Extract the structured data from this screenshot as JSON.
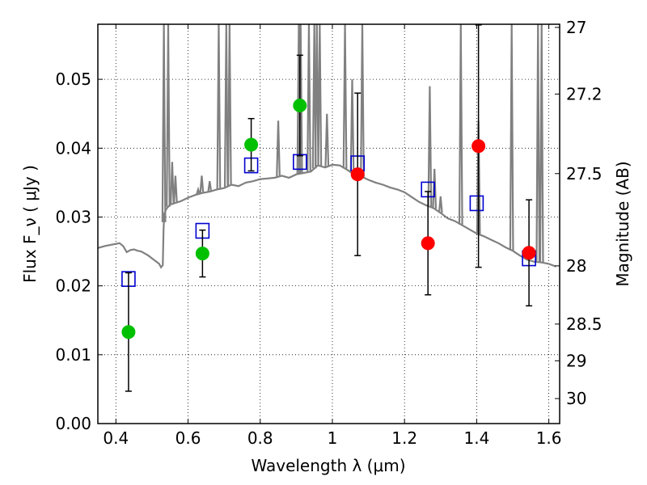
{
  "chart_data": {
    "type": "scatter",
    "xlabel": "Wavelength  λ (μm)",
    "ylabel": "Flux  F_ν  ( μJy )",
    "y2label": "Magnitude (AB)",
    "xlim": [
      0.35,
      1.63
    ],
    "ylim": [
      0.0,
      0.058
    ],
    "grid": true,
    "x_ticks": [
      0.4,
      0.6,
      0.8,
      1.0,
      1.2,
      1.4,
      1.6
    ],
    "x_tick_labels": [
      "0.4",
      "0.6",
      "0.8",
      "1",
      "1.2",
      "1.4",
      "1.6"
    ],
    "y_ticks": [
      0.0,
      0.01,
      0.02,
      0.03,
      0.04,
      0.05
    ],
    "y_tick_labels": [
      "0.00",
      "0.01",
      "0.02",
      "0.03",
      "0.04",
      "0.05"
    ],
    "y2_ticks": [
      {
        "label": "27",
        "mag": 27.0
      },
      {
        "label": "27.2",
        "mag": 27.2
      },
      {
        "label": "27.5",
        "mag": 27.5
      },
      {
        "label": "28",
        "mag": 28.0
      },
      {
        "label": "28.5",
        "mag": 28.5
      },
      {
        "label": "29",
        "mag": 29.0
      },
      {
        "label": "30",
        "mag": 30.0
      }
    ],
    "series": [
      {
        "kind": "line",
        "color": "#808080",
        "x": [
          0.35,
          0.37,
          0.39,
          0.41,
          0.42,
          0.43,
          0.44,
          0.45,
          0.46,
          0.47,
          0.48,
          0.49,
          0.5,
          0.51,
          0.52,
          0.525,
          0.53,
          0.532,
          0.534,
          0.54,
          0.55,
          0.58,
          0.6,
          0.62,
          0.64,
          0.66,
          0.68,
          0.7,
          0.72,
          0.74,
          0.76,
          0.78,
          0.8,
          0.82,
          0.84,
          0.86,
          0.88,
          0.9,
          0.92,
          0.94,
          0.96,
          0.98,
          1.0,
          1.02,
          1.04,
          1.06,
          1.08,
          1.1,
          1.12,
          1.14,
          1.16,
          1.18,
          1.2,
          1.22,
          1.24,
          1.26,
          1.28,
          1.3,
          1.32,
          1.34,
          1.36,
          1.38,
          1.4,
          1.42,
          1.44,
          1.46,
          1.48,
          1.5,
          1.52,
          1.54,
          1.56,
          1.58,
          1.6,
          1.62
        ],
        "values": [
          0.0255,
          0.0258,
          0.026,
          0.0262,
          0.0258,
          0.0249,
          0.0252,
          0.0253,
          0.0251,
          0.025,
          0.0247,
          0.0244,
          0.024,
          0.0236,
          0.0232,
          0.0227,
          0.023,
          0.028,
          0.0305,
          0.0312,
          0.0318,
          0.0323,
          0.0328,
          0.0332,
          0.0335,
          0.0337,
          0.034,
          0.0342,
          0.0347,
          0.0345,
          0.035,
          0.0352,
          0.0355,
          0.0356,
          0.0357,
          0.036,
          0.0357,
          0.0362,
          0.0364,
          0.0366,
          0.0375,
          0.0372,
          0.0376,
          0.0375,
          0.0369,
          0.0362,
          0.0359,
          0.0354,
          0.035,
          0.0347,
          0.0343,
          0.034,
          0.0336,
          0.0329,
          0.0322,
          0.0317,
          0.0313,
          0.0306,
          0.0298,
          0.0294,
          0.0288,
          0.0282,
          0.0276,
          0.0272,
          0.0267,
          0.0262,
          0.0256,
          0.0251,
          0.0244,
          0.0238,
          0.0235,
          0.0234,
          0.0232,
          0.0228
        ]
      },
      {
        "kind": "spikes",
        "color": "#808080",
        "x": [
          0.533,
          0.545,
          0.556,
          0.565,
          0.628,
          0.638,
          0.66,
          0.685,
          0.706,
          0.715,
          0.85,
          0.907,
          0.912,
          0.935,
          0.95,
          0.957,
          0.965,
          0.985,
          1.035,
          1.055,
          1.083,
          1.27,
          1.283,
          1.3,
          1.356,
          1.405,
          1.497,
          1.57,
          1.58
        ],
        "values": [
          0.058,
          0.058,
          0.038,
          0.036,
          0.034,
          0.036,
          0.0352,
          0.058,
          0.058,
          0.058,
          0.044,
          0.058,
          0.058,
          0.058,
          0.058,
          0.058,
          0.058,
          0.045,
          0.058,
          0.05,
          0.058,
          0.049,
          0.037,
          0.033,
          0.058,
          0.044,
          0.058,
          0.058,
          0.058
        ]
      },
      {
        "kind": "model-squares",
        "color": "#0000d0",
        "x": [
          0.435,
          0.64,
          0.775,
          0.91,
          1.07,
          1.265,
          1.4,
          1.545
        ],
        "values": [
          0.021,
          0.028,
          0.0375,
          0.038,
          0.0378,
          0.034,
          0.032,
          0.024
        ]
      },
      {
        "kind": "obs-green",
        "color": "#00c000",
        "x": [
          0.435,
          0.64,
          0.775,
          0.91
        ],
        "values": [
          0.0133,
          0.0247,
          0.0405,
          0.0462
        ],
        "err": [
          0.0086,
          0.0034,
          0.0038,
          0.0073
        ]
      },
      {
        "kind": "obs-red",
        "color": "#ff0000",
        "x": [
          1.07,
          1.265,
          1.405,
          1.545
        ],
        "values": [
          0.0362,
          0.0262,
          0.0403,
          0.0248
        ],
        "err": [
          0.0118,
          0.0075,
          0.0176,
          0.0077
        ]
      }
    ]
  }
}
